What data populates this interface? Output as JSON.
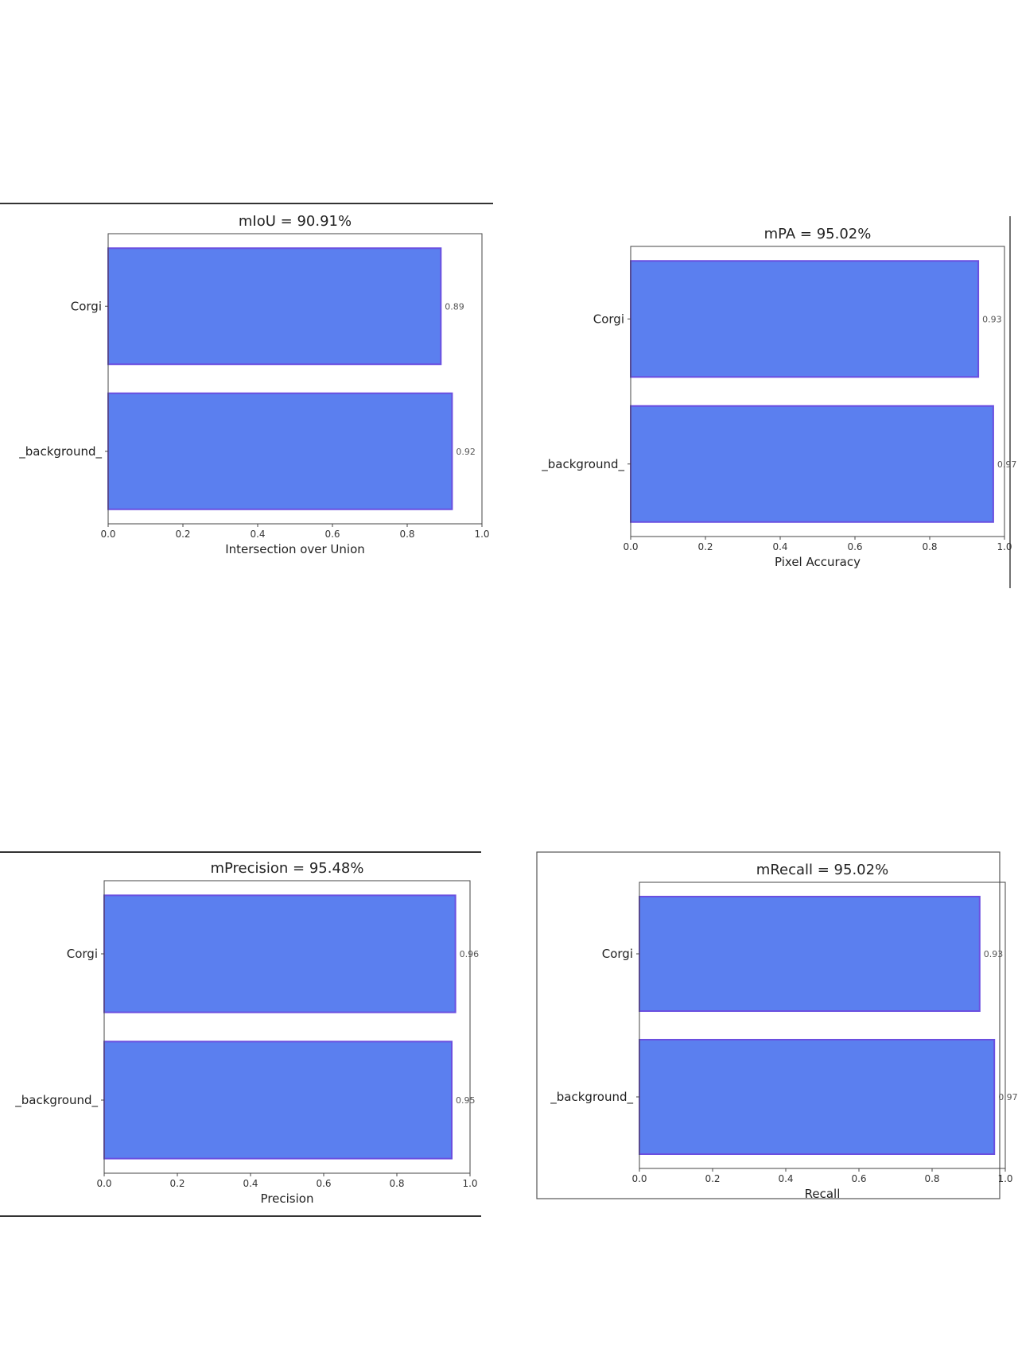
{
  "colors": {
    "bar": "#5b7fef",
    "bar_edge": "#6a4fe0",
    "axis": "#444444"
  },
  "chart_data": [
    {
      "type": "bar",
      "orientation": "horizontal",
      "title": "mIoU = 90.91%",
      "xlabel": "Intersection over Union",
      "categories": [
        "Corgi",
        "_background_"
      ],
      "values": [
        0.89,
        0.92
      ],
      "value_labels": [
        "0.89",
        "0.92"
      ],
      "xlim": [
        0.0,
        1.0
      ],
      "xticks": [
        "0.0",
        "0.2",
        "0.4",
        "0.6",
        "0.8",
        "1.0"
      ],
      "grid": false
    },
    {
      "type": "bar",
      "orientation": "horizontal",
      "title": "mPA = 95.02%",
      "xlabel": "Pixel Accuracy",
      "categories": [
        "Corgi",
        "_background_"
      ],
      "values": [
        0.93,
        0.97
      ],
      "value_labels": [
        "0.93",
        "0.97"
      ],
      "xlim": [
        0.0,
        1.0
      ],
      "xticks": [
        "0.0",
        "0.2",
        "0.4",
        "0.6",
        "0.8",
        "1.0"
      ],
      "grid": false
    },
    {
      "type": "bar",
      "orientation": "horizontal",
      "title": "mPrecision = 95.48%",
      "xlabel": "Precision",
      "categories": [
        "Corgi",
        "_background_"
      ],
      "values": [
        0.96,
        0.95
      ],
      "value_labels": [
        "0.96",
        "0.95"
      ],
      "xlim": [
        0.0,
        1.0
      ],
      "xticks": [
        "0.0",
        "0.2",
        "0.4",
        "0.6",
        "0.8",
        "1.0"
      ],
      "grid": false
    },
    {
      "type": "bar",
      "orientation": "horizontal",
      "title": "mRecall = 95.02%",
      "xlabel": "Recall",
      "categories": [
        "Corgi",
        "_background_"
      ],
      "values": [
        0.93,
        0.97
      ],
      "value_labels": [
        "0.93",
        "0.97"
      ],
      "xlim": [
        0.0,
        1.0
      ],
      "xticks": [
        "0.0",
        "0.2",
        "0.4",
        "0.6",
        "0.8",
        "1.0"
      ],
      "grid": false
    }
  ]
}
